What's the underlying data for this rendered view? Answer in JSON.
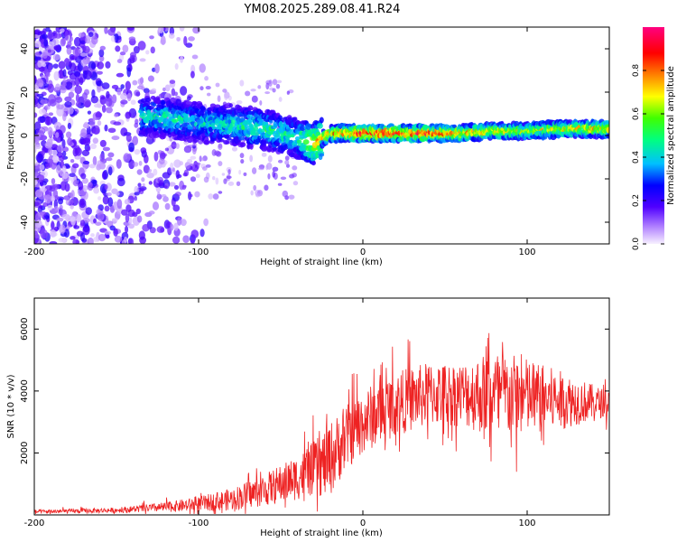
{
  "title": "YM08.2025.289.08.41.R24",
  "colors": {
    "snr_line": "#ee2222",
    "axis": "#000000",
    "background": "#ffffff"
  },
  "chart_data": [
    {
      "type": "heatmap",
      "title": "YM08.2025.289.08.41.R24",
      "xlabel": "Height of straight line (km)",
      "ylabel": "Frequency (Hz)",
      "xlim": [
        -200,
        150
      ],
      "ylim": [
        -50,
        50
      ],
      "x_ticks": [
        -200,
        -100,
        0,
        100
      ],
      "x_tick_labels": [
        "-200",
        "-100",
        "0",
        "100"
      ],
      "y_ticks": [
        -40,
        -20,
        0,
        20,
        40
      ],
      "y_tick_labels": [
        "-40",
        "-20",
        "0",
        "20",
        "40"
      ],
      "colorbar": {
        "label": "Normalized spectral amplitude",
        "range": [
          0,
          1
        ],
        "colormap": "rainbow",
        "ticks": [
          0.0,
          0.2,
          0.4,
          0.6,
          0.8
        ],
        "tick_labels": [
          "0.0",
          "0.2",
          "0.4",
          "0.6",
          "0.8"
        ]
      },
      "ridge": {
        "x": [
          -135,
          -120,
          -100,
          -80,
          -60,
          -40,
          -30,
          -20,
          0,
          20,
          40,
          60,
          80,
          100,
          120,
          150
        ],
        "freq": [
          9,
          8,
          6,
          5,
          3,
          -1,
          -4,
          1,
          1,
          1,
          1,
          1,
          2,
          2,
          3,
          3
        ],
        "peak_amplitude": [
          0.45,
          0.5,
          0.45,
          0.5,
          0.55,
          0.5,
          0.8,
          0.8,
          0.95,
          0.95,
          0.95,
          0.8,
          0.75,
          0.7,
          0.75,
          0.8
        ]
      }
    },
    {
      "type": "line",
      "xlabel": "Height of straight line (km)",
      "ylabel": "SNR (10 * v/v)",
      "xlim": [
        -200,
        150
      ],
      "ylim": [
        0,
        7000
      ],
      "x_ticks": [
        -200,
        -100,
        0,
        100
      ],
      "x_tick_labels": [
        "-200",
        "-100",
        "0",
        "100"
      ],
      "y_ticks": [
        2000,
        4000,
        6000
      ],
      "y_tick_labels": [
        "2000",
        "4000",
        "6000"
      ],
      "series": [
        {
          "name": "SNR",
          "envelope": {
            "x": [
              -200,
              -150,
              -120,
              -100,
              -80,
              -60,
              -40,
              -30,
              -25,
              -20,
              -10,
              0,
              20,
              40,
              60,
              80,
              100,
              120,
              150
            ],
            "mean": [
              100,
              150,
              250,
              350,
              500,
              800,
              1200,
              1500,
              1600,
              1800,
              2500,
              3000,
              3600,
              3900,
              3900,
              3900,
              3800,
              3700,
              3600
            ],
            "spread": [
              80,
              100,
              200,
              300,
              450,
              650,
              900,
              1100,
              1300,
              1500,
              1300,
              1300,
              1300,
              1300,
              1300,
              1800,
              1600,
              1200,
              500
            ]
          }
        }
      ]
    }
  ]
}
